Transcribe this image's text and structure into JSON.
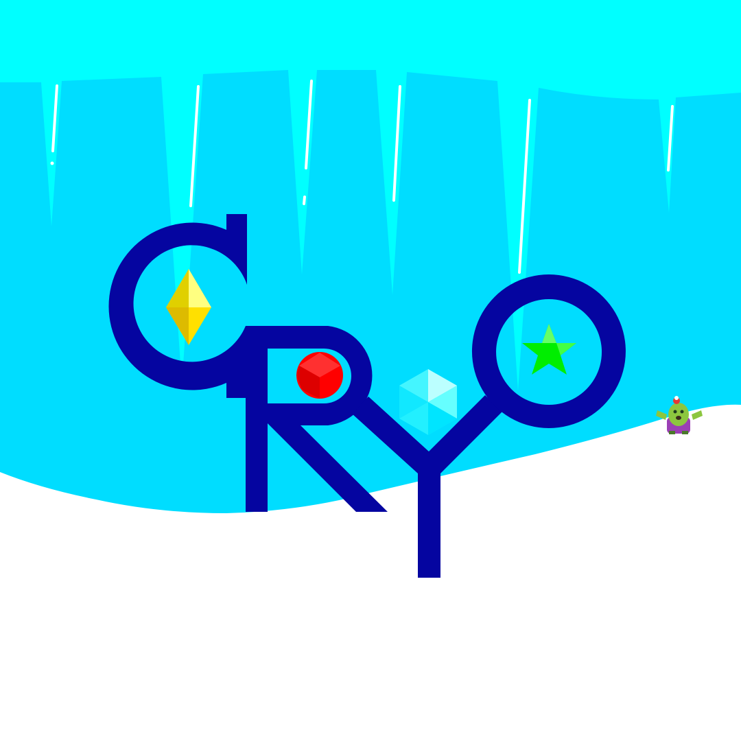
{
  "logo": {
    "letters": [
      "C",
      "R",
      "Y",
      "O"
    ],
    "color": "#0505A0"
  },
  "palette": {
    "sky_top": "#00FFFF",
    "ice_wall": "#00DDFF",
    "icicle": "#00EEFF",
    "highlight": "#FFFFFF",
    "snow": "#FFFFFF"
  },
  "gems": [
    {
      "name": "yellow-diamond-gem-icon",
      "color": "#FFE000"
    },
    {
      "name": "red-cube-gem-icon",
      "color": "#FF2020"
    },
    {
      "name": "cyan-hexagon-gem-icon",
      "color": "#33FFFF"
    },
    {
      "name": "green-star-gem-icon",
      "color": "#00EE00"
    }
  ],
  "character": {
    "name": "spike-cactus-character-icon",
    "color": "#8CC63F"
  }
}
